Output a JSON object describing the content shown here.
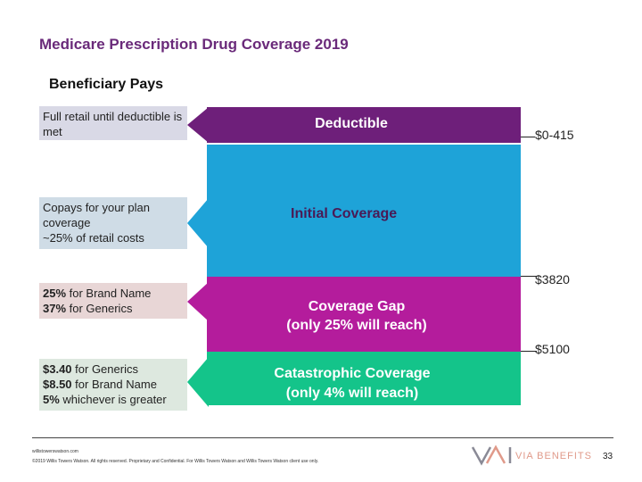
{
  "header": {
    "title": "Medicare Prescription Drug Coverage 2019",
    "subtitle": "Beneficiary Pays"
  },
  "notes": {
    "deductible": "Full retail until deductible is met",
    "initial_line1": "Copays for your plan coverage",
    "initial_pct": "~25%",
    "initial_tail": " of retail costs",
    "gap_pct_brand": "25%",
    "gap_brand_text": " for Brand Name",
    "gap_pct_generic": "37%",
    "gap_generic_text": " for Generics",
    "cat_generic_amt": "$3.40",
    "cat_generic_text": " for Generics",
    "cat_brand_amt": "$8.50",
    "cat_brand_text": " for Brand Name",
    "cat_pct": "5%",
    "cat_pct_text": " whichever is greater"
  },
  "bands": {
    "deductible": "Deductible",
    "initial": "Initial Coverage",
    "gap_line1": "Coverage Gap",
    "gap_line2": "(only 25% will reach)",
    "catastrophic_line1": "Catastrophic Coverage",
    "catastrophic_line2": "(only 4% will reach)"
  },
  "thresholds": {
    "deductible_range": "$0-415",
    "initial_limit": "$3820",
    "gap_limit": "$5100"
  },
  "footer": {
    "url": "willistowerswatson.com",
    "legal": "©2019 Willis Towers Watson. All rights reserved. Proprietary and Confidential. For Willis Towers Watson and Willis Towers Watson client use only.",
    "logo": "VIA BENEFITS",
    "page": "33"
  },
  "colors": {
    "deductible": "#6e1f7a",
    "initial": "#1ea3d8",
    "gap": "#b41c9c",
    "catastrophic": "#14c48a",
    "note_bg": "#d9d9e6",
    "note_bg_initial": "#cfdce6",
    "note_bg_gap": "#e8d6d6",
    "note_bg_cat": "#dde8df"
  }
}
